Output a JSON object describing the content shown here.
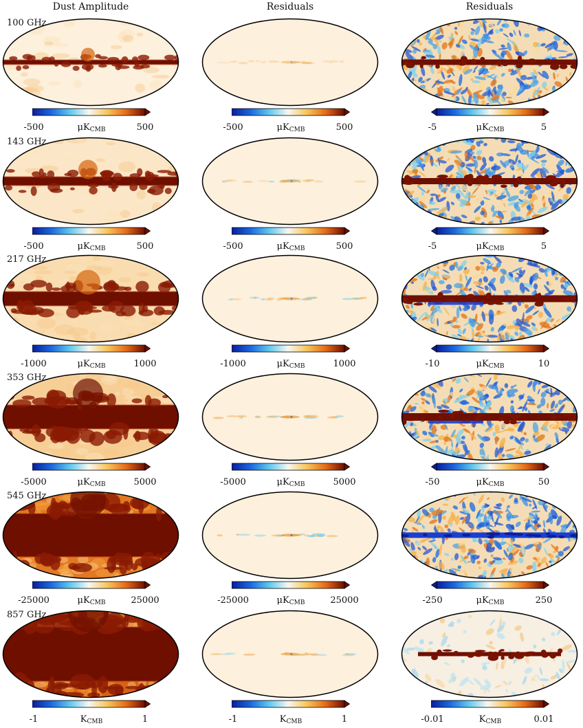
{
  "columns": [
    {
      "title": "Dust Amplitude"
    },
    {
      "title": "Residuals"
    },
    {
      "title": "Residuals"
    }
  ],
  "rows": [
    {
      "freq": "100 GHz",
      "panels": [
        {
          "min": "-500",
          "max": "500",
          "unit": "μK",
          "sub": "CMB"
        },
        {
          "min": "-500",
          "max": "500",
          "unit": "μK",
          "sub": "CMB"
        },
        {
          "min": "-5",
          "max": "5",
          "unit": "μK",
          "sub": "CMB"
        }
      ]
    },
    {
      "freq": "143 GHz",
      "panels": [
        {
          "min": "-500",
          "max": "500",
          "unit": "μK",
          "sub": "CMB"
        },
        {
          "min": "-500",
          "max": "500",
          "unit": "μK",
          "sub": "CMB"
        },
        {
          "min": "-5",
          "max": "5",
          "unit": "μK",
          "sub": "CMB"
        }
      ]
    },
    {
      "freq": "217 GHz",
      "panels": [
        {
          "min": "-1000",
          "max": "1000",
          "unit": "μK",
          "sub": "CMB"
        },
        {
          "min": "-1000",
          "max": "1000",
          "unit": "μK",
          "sub": "CMB"
        },
        {
          "min": "-10",
          "max": "10",
          "unit": "μK",
          "sub": "CMB"
        }
      ]
    },
    {
      "freq": "353 GHz",
      "panels": [
        {
          "min": "-5000",
          "max": "5000",
          "unit": "μK",
          "sub": "CMB"
        },
        {
          "min": "-5000",
          "max": "5000",
          "unit": "μK",
          "sub": "CMB"
        },
        {
          "min": "-50",
          "max": "50",
          "unit": "μK",
          "sub": "CMB"
        }
      ]
    },
    {
      "freq": "545 GHz",
      "panels": [
        {
          "min": "-25000",
          "max": "25000",
          "unit": "μK",
          "sub": "CMB"
        },
        {
          "min": "-25000",
          "max": "25000",
          "unit": "μK",
          "sub": "CMB"
        },
        {
          "min": "-250",
          "max": "250",
          "unit": "μK",
          "sub": "CMB"
        }
      ]
    },
    {
      "freq": "857 GHz",
      "panels": [
        {
          "min": "-1",
          "max": "1",
          "unit": "K",
          "sub": "CMB"
        },
        {
          "min": "-1",
          "max": "1",
          "unit": "K",
          "sub": "CMB"
        },
        {
          "min": "-0.01",
          "max": "0.01",
          "unit": "K",
          "sub": "CMB"
        }
      ]
    }
  ],
  "colormap": [
    "#0a1e9c",
    "#1a68e0",
    "#5fc8ee",
    "#f7f7f2",
    "#f8c55a",
    "#e76a18",
    "#6e0f00"
  ],
  "background_colors": {
    "dust_base": "#fbe6c6",
    "residual_base": "#fdf0dd",
    "band": "#7a1200"
  }
}
